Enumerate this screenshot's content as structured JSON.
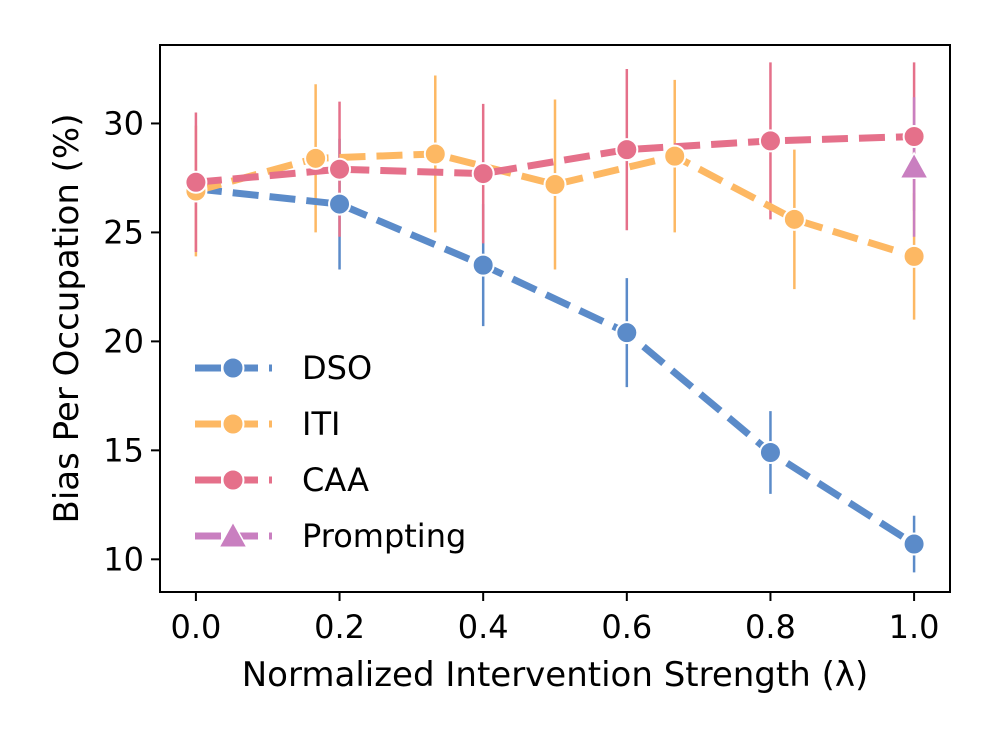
{
  "chart_data": {
    "type": "line",
    "title": "",
    "xlabel": "Normalized Intervention Strength (λ)",
    "ylabel": "Bias Per Occupation (%)",
    "xlim": [
      -0.05,
      1.05
    ],
    "ylim": [
      8.5,
      33.6
    ],
    "xticks": [
      "0.0",
      "0.2",
      "0.4",
      "0.6",
      "0.8",
      "1.0"
    ],
    "yticks": [
      "10",
      "15",
      "20",
      "25",
      "30"
    ],
    "legend_position": "center-left",
    "series": [
      {
        "name": "DSO",
        "color": "#5b8bc9",
        "marker": "circle",
        "linestyle": "dashed",
        "x": [
          0.0,
          0.2,
          0.4,
          0.6,
          0.8,
          1.0
        ],
        "y": [
          27.0,
          26.3,
          23.5,
          20.4,
          14.9,
          10.7
        ],
        "err": [
          0,
          3.0,
          2.8,
          2.5,
          1.9,
          1.3
        ]
      },
      {
        "name": "ITI",
        "color": "#fdb863",
        "marker": "circle",
        "linestyle": "dashed",
        "x": [
          0.0,
          0.1667,
          0.3333,
          0.5,
          0.6667,
          0.8333,
          1.0
        ],
        "y": [
          26.9,
          28.4,
          28.6,
          27.2,
          28.5,
          25.6,
          23.9
        ],
        "err": [
          3.0,
          3.4,
          3.6,
          3.9,
          3.5,
          3.2,
          2.9
        ]
      },
      {
        "name": "CAA",
        "color": "#e5708a",
        "marker": "circle",
        "linestyle": "dashed",
        "x": [
          0.0,
          0.2,
          0.4,
          0.6,
          0.8,
          1.0
        ],
        "y": [
          27.3,
          27.9,
          27.7,
          28.8,
          29.2,
          29.4
        ],
        "err": [
          3.2,
          3.1,
          3.2,
          3.7,
          3.6,
          3.4
        ]
      },
      {
        "name": "Prompting",
        "color": "#c97fc0",
        "marker": "triangle",
        "linestyle": "dashed",
        "x": [
          1.0
        ],
        "y": [
          28.0
        ],
        "err": [
          3.2
        ]
      }
    ]
  }
}
